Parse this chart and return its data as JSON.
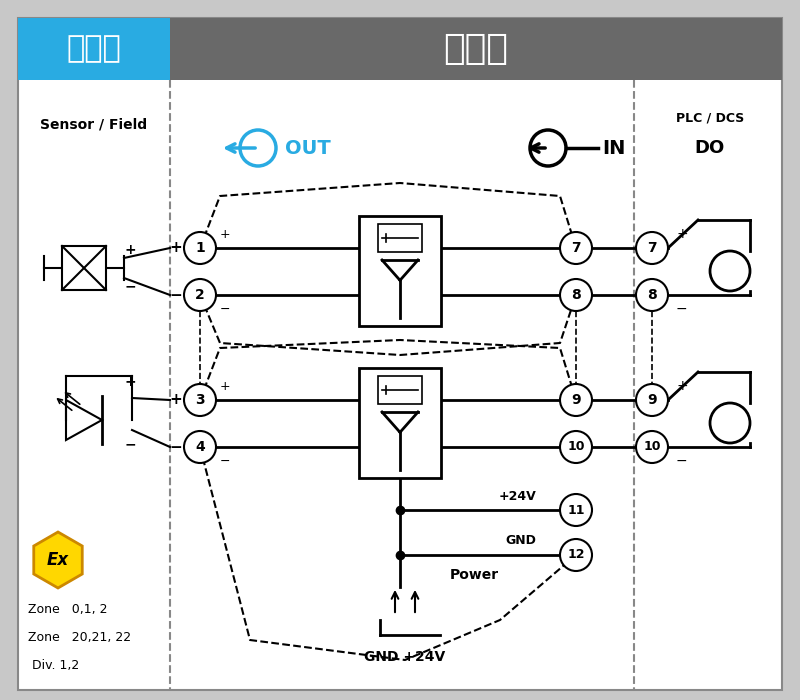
{
  "title_danger": "危险区",
  "title_safe": "安全区",
  "header_bg_danger": "#29ABE2",
  "header_bg_safe": "#696969",
  "header_text_color": "#FFFFFF",
  "bg_color": "#FFFFFF",
  "border_color": "#999999",
  "fig_bg": "#C8C8C8",
  "label_sensor": "Sensor / Field",
  "label_plc": "PLC / DCS",
  "label_do": "DO",
  "label_out": "OUT",
  "label_in": "IN",
  "zone_text": [
    "Zone   0,1, 2",
    "Zone   20,21, 22",
    " Div. 1,2"
  ]
}
